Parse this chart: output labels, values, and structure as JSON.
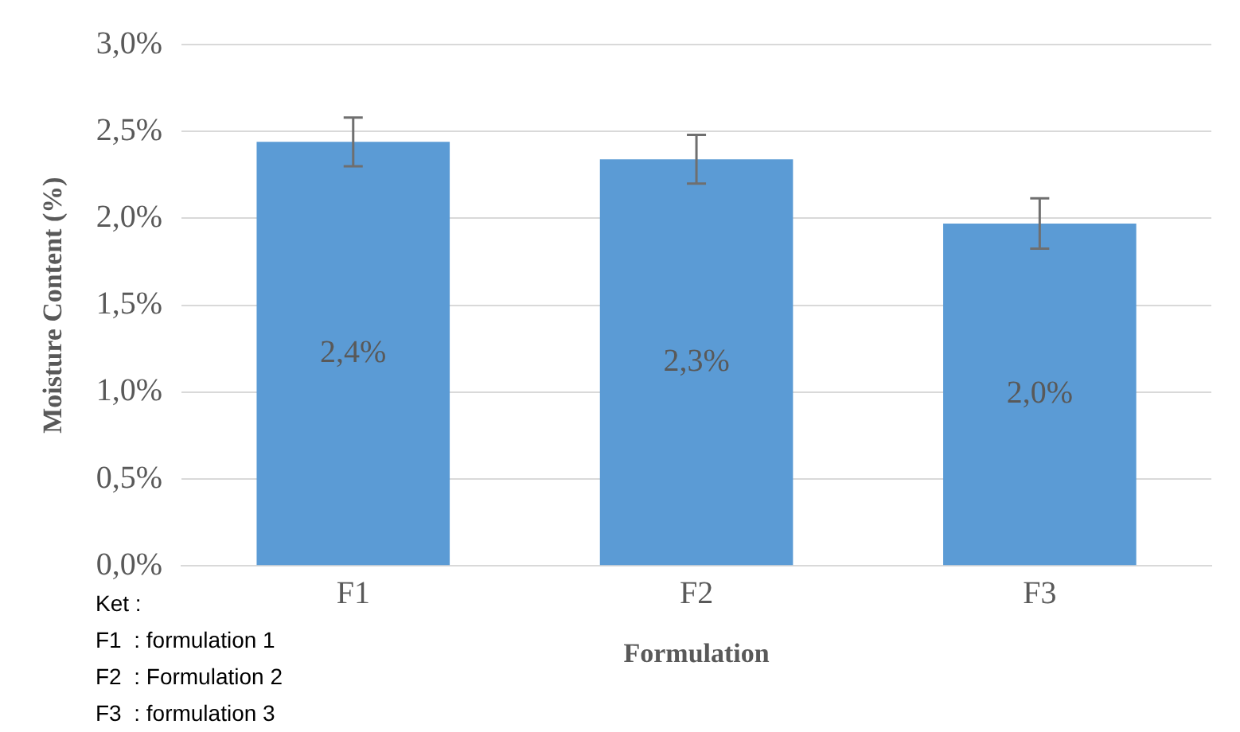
{
  "chart_data": {
    "type": "bar",
    "xlabel": "Formulation",
    "ylabel": "Moisture Content (%)",
    "categories": [
      "F1",
      "F2",
      "F3"
    ],
    "values": [
      2.44,
      2.34,
      1.97
    ],
    "errors": [
      0.14,
      0.14,
      0.145
    ],
    "value_labels": [
      "2,4%",
      "2,3%",
      "2,0%"
    ],
    "color": "#5b9bd5",
    "ylim": [
      0,
      3
    ],
    "yticks": [
      {
        "value": 0,
        "label": "0,0%"
      },
      {
        "value": 0.5,
        "label": "0,5%"
      },
      {
        "value": 1,
        "label": "1,0%"
      },
      {
        "value": 1.5,
        "label": "1,5%"
      },
      {
        "value": 2,
        "label": "2,0%"
      },
      {
        "value": 2.5,
        "label": "2,5%"
      },
      {
        "value": 3,
        "label": "3,0%"
      }
    ],
    "grid": "y",
    "legend": false,
    "annotations": [
      "Ket :",
      "F1  : formulation 1",
      "F2  : Formulation 2",
      "F3  : formulation 3"
    ]
  }
}
